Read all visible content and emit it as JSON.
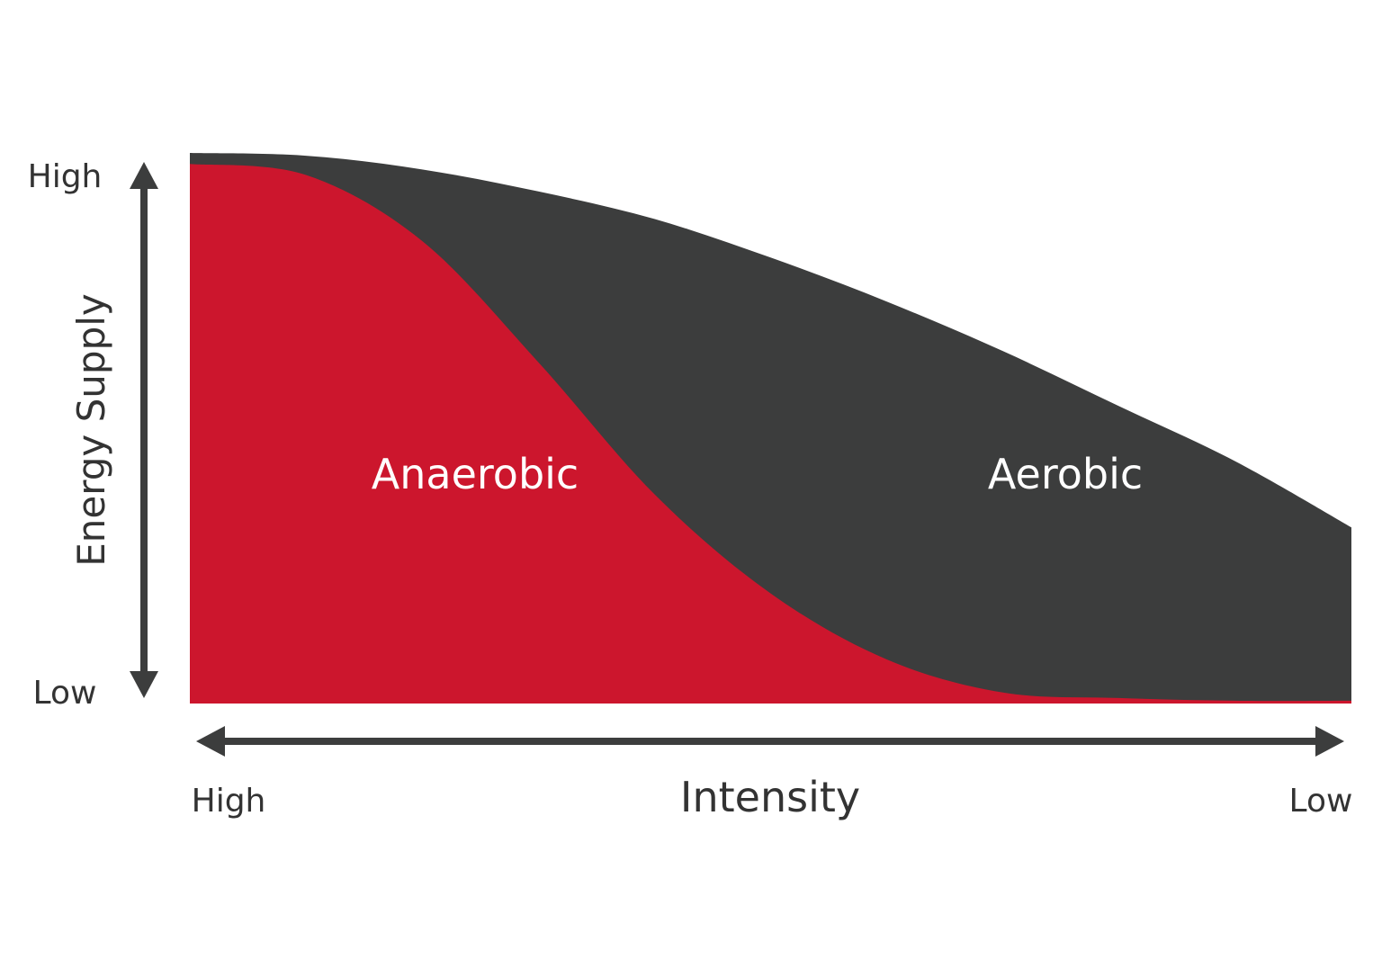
{
  "chart_data": {
    "type": "area",
    "title": "",
    "xlabel": "Intensity",
    "ylabel": "Energy Supply",
    "x_tick_labels": {
      "start": "High",
      "end": "Low"
    },
    "y_tick_labels": {
      "top": "High",
      "bottom": "Low"
    },
    "x": [
      0,
      0.1,
      0.2,
      0.3,
      0.4,
      0.5,
      0.6,
      0.7,
      0.8,
      0.9,
      1.0
    ],
    "xlim": [
      0,
      1
    ],
    "ylim": [
      0,
      1
    ],
    "grid": false,
    "legend": "none",
    "series": [
      {
        "name": "Anaerobic",
        "color": "#cc162d",
        "values": [
          0.98,
          0.96,
          0.84,
          0.62,
          0.38,
          0.2,
          0.08,
          0.02,
          0.01,
          0.005,
          0.005
        ]
      },
      {
        "name": "Aerobic",
        "color": "#3c3d3d",
        "values": [
          1.0,
          0.995,
          0.97,
          0.93,
          0.88,
          0.81,
          0.73,
          0.64,
          0.54,
          0.44,
          0.32
        ]
      }
    ]
  }
}
